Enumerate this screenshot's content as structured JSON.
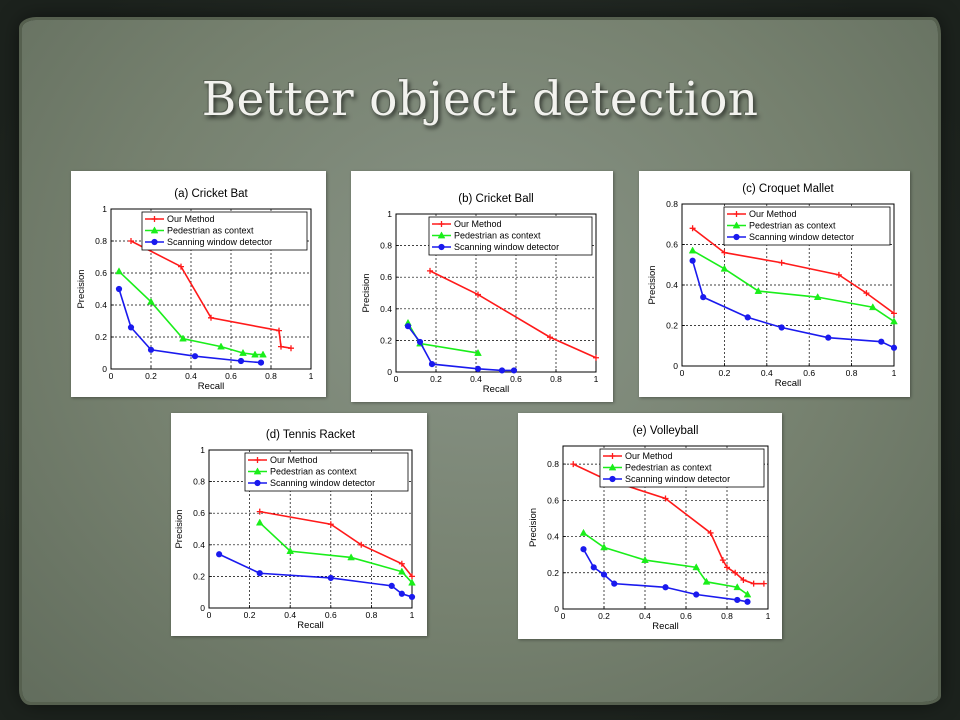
{
  "slide": {
    "title": "Better object detection"
  },
  "chart_data": [
    {
      "type": "line",
      "title": "(a) Cricket Bat",
      "xlabel": "Recall",
      "ylabel": "Precision",
      "xlim": [
        0,
        1
      ],
      "ylim": [
        0,
        1
      ],
      "xticks": [
        "0",
        "0.2",
        "0.4",
        "0.6",
        "0.8",
        "1"
      ],
      "yticks": [
        "0",
        "0.2",
        "0.4",
        "0.6",
        "0.8",
        "1"
      ],
      "grid": true,
      "legend": "top-right",
      "series": [
        {
          "name": "Our Method",
          "color": "#ff1a1a",
          "marker": "plus",
          "points": [
            [
              0.1,
              0.8
            ],
            [
              0.35,
              0.64
            ],
            [
              0.5,
              0.32
            ],
            [
              0.84,
              0.24
            ],
            [
              0.85,
              0.14
            ],
            [
              0.9,
              0.13
            ]
          ]
        },
        {
          "name": "Pedestrian as context",
          "color": "#1aee1a",
          "marker": "triangle",
          "points": [
            [
              0.04,
              0.61
            ],
            [
              0.2,
              0.42
            ],
            [
              0.36,
              0.19
            ],
            [
              0.55,
              0.14
            ],
            [
              0.66,
              0.1
            ],
            [
              0.72,
              0.09
            ],
            [
              0.76,
              0.09
            ]
          ]
        },
        {
          "name": "Scanning window detector",
          "color": "#1a1aee",
          "marker": "circle",
          "points": [
            [
              0.04,
              0.5
            ],
            [
              0.1,
              0.26
            ],
            [
              0.2,
              0.12
            ],
            [
              0.42,
              0.08
            ],
            [
              0.65,
              0.05
            ],
            [
              0.75,
              0.04
            ]
          ]
        }
      ]
    },
    {
      "type": "line",
      "title": "(b) Cricket Ball",
      "xlabel": "Recall",
      "ylabel": "Precision",
      "xlim": [
        0,
        1
      ],
      "ylim": [
        0,
        1
      ],
      "xticks": [
        "0",
        "0.2",
        "0.4",
        "0.6",
        "0.8",
        "1"
      ],
      "yticks": [
        "0",
        "0.2",
        "0.4",
        "0.6",
        "0.8",
        "1"
      ],
      "grid": true,
      "legend": "top-right",
      "series": [
        {
          "name": "Our Method",
          "color": "#ff1a1a",
          "marker": "plus",
          "points": [
            [
              0.17,
              0.64
            ],
            [
              0.41,
              0.49
            ],
            [
              0.77,
              0.22
            ],
            [
              1.0,
              0.09
            ]
          ]
        },
        {
          "name": "Pedestrian as context",
          "color": "#1aee1a",
          "marker": "triangle",
          "points": [
            [
              0.06,
              0.31
            ],
            [
              0.12,
              0.18
            ],
            [
              0.41,
              0.12
            ]
          ]
        },
        {
          "name": "Scanning window detector",
          "color": "#1a1aee",
          "marker": "circle",
          "points": [
            [
              0.06,
              0.29
            ],
            [
              0.12,
              0.19
            ],
            [
              0.18,
              0.05
            ],
            [
              0.41,
              0.02
            ],
            [
              0.53,
              0.01
            ],
            [
              0.59,
              0.01
            ]
          ]
        }
      ]
    },
    {
      "type": "line",
      "title": "(c) Croquet Mallet",
      "xlabel": "Recall",
      "ylabel": "Precision",
      "xlim": [
        0,
        1
      ],
      "ylim": [
        0,
        0.8
      ],
      "xticks": [
        "0",
        "0.2",
        "0.4",
        "0.6",
        "0.8",
        "1"
      ],
      "yticks": [
        "0",
        "0.2",
        "0.4",
        "0.6",
        "0.8"
      ],
      "grid": true,
      "legend": "top-right",
      "series": [
        {
          "name": "Our Method",
          "color": "#ff1a1a",
          "marker": "plus",
          "points": [
            [
              0.05,
              0.68
            ],
            [
              0.2,
              0.56
            ],
            [
              0.47,
              0.51
            ],
            [
              0.74,
              0.45
            ],
            [
              0.87,
              0.36
            ],
            [
              1.0,
              0.26
            ]
          ]
        },
        {
          "name": "Pedestrian as context",
          "color": "#1aee1a",
          "marker": "triangle",
          "points": [
            [
              0.05,
              0.57
            ],
            [
              0.2,
              0.48
            ],
            [
              0.36,
              0.37
            ],
            [
              0.64,
              0.34
            ],
            [
              0.9,
              0.29
            ],
            [
              1.0,
              0.22
            ]
          ]
        },
        {
          "name": "Scanning window detector",
          "color": "#1a1aee",
          "marker": "circle",
          "points": [
            [
              0.05,
              0.52
            ],
            [
              0.1,
              0.34
            ],
            [
              0.31,
              0.24
            ],
            [
              0.47,
              0.19
            ],
            [
              0.69,
              0.14
            ],
            [
              0.94,
              0.12
            ],
            [
              1.0,
              0.09
            ]
          ]
        }
      ]
    },
    {
      "type": "line",
      "title": "(d) Tennis Racket",
      "xlabel": "Recall",
      "ylabel": "Precision",
      "xlim": [
        0,
        1
      ],
      "ylim": [
        0,
        1
      ],
      "xticks": [
        "0",
        "0.2",
        "0.4",
        "0.6",
        "0.8",
        "1"
      ],
      "yticks": [
        "0",
        "0.2",
        "0.4",
        "0.6",
        "0.8",
        "1"
      ],
      "grid": true,
      "legend": "top-right",
      "series": [
        {
          "name": "Our Method",
          "color": "#ff1a1a",
          "marker": "plus",
          "points": [
            [
              0.25,
              0.61
            ],
            [
              0.6,
              0.53
            ],
            [
              0.75,
              0.4
            ],
            [
              0.95,
              0.28
            ],
            [
              1.0,
              0.2
            ]
          ]
        },
        {
          "name": "Pedestrian as context",
          "color": "#1aee1a",
          "marker": "triangle",
          "points": [
            [
              0.25,
              0.54
            ],
            [
              0.4,
              0.36
            ],
            [
              0.7,
              0.32
            ],
            [
              0.95,
              0.23
            ],
            [
              1.0,
              0.16
            ]
          ]
        },
        {
          "name": "Scanning window detector",
          "color": "#1a1aee",
          "marker": "circle",
          "points": [
            [
              0.05,
              0.34
            ],
            [
              0.25,
              0.22
            ],
            [
              0.6,
              0.19
            ],
            [
              0.9,
              0.14
            ],
            [
              0.95,
              0.09
            ],
            [
              1.0,
              0.07
            ]
          ]
        }
      ]
    },
    {
      "type": "line",
      "title": "(e) Volleyball",
      "xlabel": "Recall",
      "ylabel": "Precision",
      "xlim": [
        0,
        1
      ],
      "ylim": [
        0,
        0.9
      ],
      "xticks": [
        "0",
        "0.2",
        "0.4",
        "0.6",
        "0.8",
        "1"
      ],
      "yticks": [
        "0",
        "0.2",
        "0.4",
        "0.6",
        "0.8"
      ],
      "grid": true,
      "legend": "top-right",
      "series": [
        {
          "name": "Our Method",
          "color": "#ff1a1a",
          "marker": "plus",
          "points": [
            [
              0.05,
              0.8
            ],
            [
              0.2,
              0.72
            ],
            [
              0.5,
              0.61
            ],
            [
              0.72,
              0.42
            ],
            [
              0.78,
              0.27
            ],
            [
              0.8,
              0.23
            ],
            [
              0.84,
              0.2
            ],
            [
              0.88,
              0.16
            ],
            [
              0.93,
              0.14
            ],
            [
              0.98,
              0.14
            ]
          ]
        },
        {
          "name": "Pedestrian as context",
          "color": "#1aee1a",
          "marker": "triangle",
          "points": [
            [
              0.1,
              0.42
            ],
            [
              0.2,
              0.34
            ],
            [
              0.4,
              0.27
            ],
            [
              0.65,
              0.23
            ],
            [
              0.7,
              0.15
            ],
            [
              0.85,
              0.12
            ],
            [
              0.9,
              0.08
            ]
          ]
        },
        {
          "name": "Scanning window detector",
          "color": "#1a1aee",
          "marker": "circle",
          "points": [
            [
              0.1,
              0.33
            ],
            [
              0.15,
              0.23
            ],
            [
              0.2,
              0.19
            ],
            [
              0.25,
              0.14
            ],
            [
              0.5,
              0.12
            ],
            [
              0.65,
              0.08
            ],
            [
              0.85,
              0.05
            ],
            [
              0.9,
              0.04
            ]
          ]
        }
      ]
    }
  ]
}
